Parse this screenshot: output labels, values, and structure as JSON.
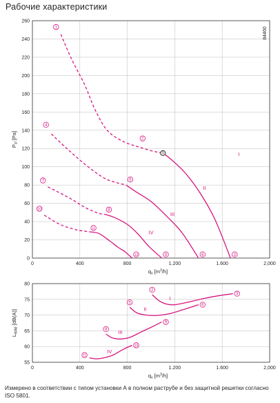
{
  "page": {
    "title": "Рабочие характеристики",
    "footnote": "Измерено в соответствии с типом установки А в полном раструбе и без защитной решетки согласно ISO 5801."
  },
  "chart_data": [
    {
      "type": "line",
      "id_label": "84460",
      "xlabel": "qv [m³/h]",
      "ylabel": "Psf [Pa]",
      "xlim": [
        0,
        2000
      ],
      "ylim": [
        0,
        260
      ],
      "x_ticks": [
        "0",
        "400",
        "800",
        "1.200",
        "1.600",
        "2,000"
      ],
      "y_ticks": [
        "0",
        "20",
        "40",
        "60",
        "80",
        "100",
        "120",
        "140",
        "160",
        "180",
        "200",
        "220",
        "240",
        "260"
      ],
      "grid": true,
      "colors": {
        "curve": "#d6157f",
        "grid": "#a9a9a9",
        "axis": "#231f20"
      },
      "series": [
        {
          "name": "I",
          "name_at": [
            1740,
            112
          ],
          "points": [
            [
              240,
              245
            ],
            [
              330,
              218
            ],
            [
              440,
              190
            ],
            [
              530,
              162
            ],
            [
              630,
              140
            ],
            [
              760,
              128
            ],
            [
              890,
              122
            ],
            [
              1020,
              117
            ],
            [
              1100,
              115
            ],
            [
              1170,
              108
            ],
            [
              1290,
              93
            ],
            [
              1420,
              70
            ],
            [
              1540,
              42
            ],
            [
              1670,
              0
            ]
          ],
          "solid_from": 1100
        },
        {
          "name": "II",
          "name_at": [
            1450,
            75
          ],
          "points": [
            [
              160,
              136
            ],
            [
              290,
              120
            ],
            [
              450,
              102
            ],
            [
              600,
              88
            ],
            [
              700,
              83
            ],
            [
              790,
              80
            ],
            [
              880,
              72
            ],
            [
              1000,
              62
            ],
            [
              1130,
              46
            ],
            [
              1260,
              28
            ],
            [
              1400,
              0
            ]
          ],
          "solid_from": 790
        },
        {
          "name": "III",
          "name_at": [
            1180,
            46
          ],
          "points": [
            [
              130,
              78
            ],
            [
              310,
              66
            ],
            [
              450,
              55
            ],
            [
              560,
              49
            ],
            [
              610,
              48
            ],
            [
              700,
              44
            ],
            [
              810,
              36
            ],
            [
              900,
              25
            ],
            [
              980,
              13
            ],
            [
              1090,
              0
            ]
          ],
          "solid_from": 610
        },
        {
          "name": "IV",
          "name_at": [
            1000,
            26
          ],
          "points": [
            [
              100,
              47
            ],
            [
              230,
              37
            ],
            [
              370,
              31
            ],
            [
              470,
              29
            ],
            [
              560,
              27
            ],
            [
              650,
              19
            ],
            [
              720,
              12
            ],
            [
              780,
              7
            ],
            [
              840,
              0
            ]
          ],
          "solid_from": 480
        }
      ],
      "markers": [
        {
          "label": "1",
          "x": 240,
          "y": 250,
          "side": "left"
        },
        {
          "label": "2",
          "x": 970,
          "y": 128,
          "side": "left"
        },
        {
          "label": "3",
          "x": 1670,
          "y": 4,
          "side": "right"
        },
        {
          "label": "4",
          "x": 155,
          "y": 143,
          "side": "left"
        },
        {
          "label": "5",
          "x": 790,
          "y": 86,
          "side": "right"
        },
        {
          "label": "6",
          "x": 1400,
          "y": 4,
          "side": "right"
        },
        {
          "label": "7",
          "x": 130,
          "y": 82,
          "side": "left"
        },
        {
          "label": "8",
          "x": 610,
          "y": 53,
          "side": "right"
        },
        {
          "label": "9",
          "x": 1090,
          "y": 4,
          "side": "right"
        },
        {
          "label": "10",
          "x": 100,
          "y": 51,
          "side": "left"
        },
        {
          "label": "11",
          "x": 480,
          "y": 33,
          "side": "right"
        },
        {
          "label": "12",
          "x": 840,
          "y": 4,
          "side": "right"
        }
      ],
      "operating_point": {
        "label": "0",
        "x": 1100,
        "y": 115
      }
    },
    {
      "type": "line",
      "xlabel": "qv [m³/h]",
      "ylabel": "LWA6 [dB(A)]",
      "xlim": [
        0,
        2000
      ],
      "ylim": [
        55,
        80
      ],
      "x_ticks": [
        "0",
        "400",
        "800",
        "1.200",
        "1.600",
        "2,000"
      ],
      "y_ticks": [
        "55",
        "60",
        "65",
        "70",
        "75",
        "80"
      ],
      "grid": true,
      "colors": {
        "curve": "#d6157f",
        "grid": "#a9a9a9",
        "axis": "#231f20"
      },
      "series": [
        {
          "name": "I",
          "name_at": [
            1160,
            74.7
          ],
          "points": [
            [
              1010,
              76.5
            ],
            [
              1070,
              74.5
            ],
            [
              1130,
              73.5
            ],
            [
              1200,
              73.3
            ],
            [
              1300,
              74
            ],
            [
              1450,
              75.3
            ],
            [
              1560,
              76.1
            ],
            [
              1690,
              76.8
            ]
          ]
        },
        {
          "name": "II",
          "name_at": [
            950,
            71.3
          ],
          "points": [
            [
              820,
              72.5
            ],
            [
              880,
              70.7
            ],
            [
              960,
              70
            ],
            [
              1050,
              69.9
            ],
            [
              1150,
              70.4
            ],
            [
              1260,
              71.6
            ],
            [
              1400,
              73.3
            ]
          ]
        },
        {
          "name": "III",
          "name_at": [
            740,
            64
          ],
          "points": [
            [
              620,
              64
            ],
            [
              670,
              62.8
            ],
            [
              740,
              62.4
            ],
            [
              820,
              62.9
            ],
            [
              920,
              64.7
            ],
            [
              1000,
              66.1
            ],
            [
              1090,
              67.8
            ]
          ]
        },
        {
          "name": "IV",
          "name_at": [
            650,
            57.9
          ],
          "points": [
            [
              480,
              56.4
            ],
            [
              540,
              56.1
            ],
            [
              600,
              56.4
            ],
            [
              680,
              57.3
            ],
            [
              760,
              59
            ],
            [
              840,
              60.4
            ]
          ]
        }
      ],
      "markers": [
        {
          "label": "2",
          "x": 1010,
          "y": 76.5,
          "side": "above"
        },
        {
          "label": "3",
          "x": 1690,
          "y": 76.8,
          "side": "right"
        },
        {
          "label": "5",
          "x": 820,
          "y": 72.5,
          "side": "above"
        },
        {
          "label": "6",
          "x": 1400,
          "y": 73.3,
          "side": "right"
        },
        {
          "label": "8",
          "x": 620,
          "y": 64,
          "side": "above"
        },
        {
          "label": "9",
          "x": 1090,
          "y": 67.8,
          "side": "right"
        },
        {
          "label": "10",
          "x": 840,
          "y": 60.4,
          "side": "right"
        },
        {
          "label": "11",
          "x": 480,
          "y": 56.4,
          "side": "left"
        }
      ]
    }
  ]
}
